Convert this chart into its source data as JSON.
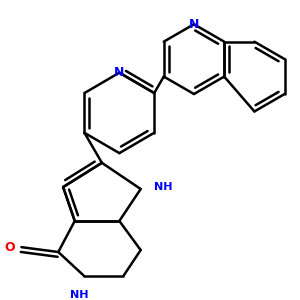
{
  "bg_color": "#ffffff",
  "bond_color": "#000000",
  "N_color": "#0000ff",
  "O_color": "#ff0000",
  "bond_width": 1.8,
  "figsize": [
    3.0,
    3.0
  ],
  "dpi": 100,
  "xlim": [
    0,
    300
  ],
  "ylim": [
    0,
    300
  ]
}
